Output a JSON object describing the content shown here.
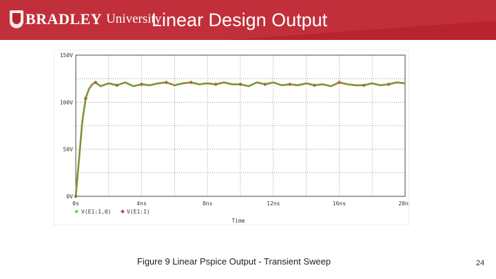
{
  "header": {
    "logo_brand": "BRADLEY",
    "logo_sub": "University",
    "title": "Linear Design Output",
    "colors": {
      "band": "#b9232e",
      "band_light": "#cd4049"
    }
  },
  "caption": "Figure 9 Linear Pspice Output - Transient Sweep",
  "page_number": "24",
  "chart_data": {
    "type": "line",
    "title": "",
    "xlabel": "Time",
    "ylabel": "",
    "xlim": [
      0,
      20
    ],
    "ylim": [
      0,
      150
    ],
    "x_unit": "ns",
    "x_ticks": [
      0,
      4,
      8,
      12,
      16,
      20
    ],
    "x_tick_labels": [
      "0s",
      "4ns",
      "8ns",
      "12ns",
      "16ns",
      "20ns"
    ],
    "y_ticks": [
      0,
      50,
      100,
      150
    ],
    "y_tick_labels": [
      "0V",
      "50V",
      "100V",
      "150V"
    ],
    "grid": true,
    "legend_position": "bottom-left",
    "legend_text": [
      "V(E1:1,0)",
      "V(E1:1)"
    ],
    "colors": {
      "series_1": "#6fd34a",
      "series_2": "#c0504d"
    },
    "series": [
      {
        "name": "V(E1:1,0)",
        "marker": "square",
        "x": [
          0,
          0.2,
          0.4,
          0.6,
          0.8,
          1.0,
          1.2,
          1.5,
          2.0,
          2.5,
          3.0,
          3.5,
          4.0,
          4.5,
          5.0,
          5.5,
          6.0,
          6.5,
          7.0,
          7.5,
          8.0,
          8.5,
          9.0,
          9.5,
          10.0,
          10.5,
          11.0,
          11.5,
          12.0,
          12.5,
          13.0,
          13.5,
          14.0,
          14.5,
          15.0,
          15.5,
          16.0,
          16.5,
          17.0,
          17.5,
          18.0,
          18.5,
          19.0,
          19.5,
          20.0
        ],
        "y": [
          0,
          40,
          80,
          104,
          114,
          119,
          121,
          117,
          120,
          118,
          121,
          117,
          119,
          118,
          120,
          121,
          118,
          120,
          121,
          119,
          120,
          119,
          121,
          119,
          119,
          117,
          121,
          119,
          121,
          118,
          119,
          118,
          120,
          118,
          119,
          117,
          121,
          119,
          118,
          118,
          120,
          118,
          119,
          121,
          120
        ]
      },
      {
        "name": "V(E1:1)",
        "marker": "diamond",
        "x": [
          0,
          0.2,
          0.4,
          0.6,
          0.8,
          1.0,
          1.2,
          1.5,
          2.0,
          2.5,
          3.0,
          3.5,
          4.0,
          4.5,
          5.0,
          5.5,
          6.0,
          6.5,
          7.0,
          7.5,
          8.0,
          8.5,
          9.0,
          9.5,
          10.0,
          10.5,
          11.0,
          11.5,
          12.0,
          12.5,
          13.0,
          13.5,
          14.0,
          14.5,
          15.0,
          15.5,
          16.0,
          16.5,
          17.0,
          17.5,
          18.0,
          18.5,
          19.0,
          19.5,
          20.0
        ],
        "y": [
          0,
          40,
          80,
          104,
          114,
          119,
          121,
          117,
          120,
          118,
          121,
          117,
          119,
          118,
          120,
          121,
          118,
          120,
          121,
          119,
          120,
          119,
          121,
          119,
          119,
          117,
          121,
          119,
          121,
          118,
          119,
          118,
          120,
          118,
          119,
          117,
          121,
          119,
          118,
          118,
          120,
          118,
          119,
          121,
          120
        ]
      }
    ]
  }
}
